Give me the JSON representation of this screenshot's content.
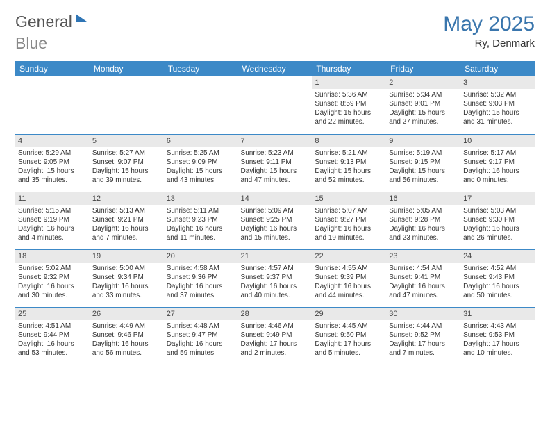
{
  "logo": {
    "part1": "General",
    "part2": "Blue"
  },
  "title": "May 2025",
  "location": "Ry, Denmark",
  "weekdays": [
    "Sunday",
    "Monday",
    "Tuesday",
    "Wednesday",
    "Thursday",
    "Friday",
    "Saturday"
  ],
  "colors": {
    "header_bg": "#3c89c7",
    "header_text": "#ffffff",
    "daynum_bg": "#e9e9e9",
    "title_color": "#3a76ad",
    "rule_color": "#3c89c7"
  },
  "weeks": [
    [
      null,
      null,
      null,
      null,
      {
        "n": "1",
        "sr": "5:36 AM",
        "ss": "8:59 PM",
        "dl": "15 hours and 22 minutes."
      },
      {
        "n": "2",
        "sr": "5:34 AM",
        "ss": "9:01 PM",
        "dl": "15 hours and 27 minutes."
      },
      {
        "n": "3",
        "sr": "5:32 AM",
        "ss": "9:03 PM",
        "dl": "15 hours and 31 minutes."
      }
    ],
    [
      {
        "n": "4",
        "sr": "5:29 AM",
        "ss": "9:05 PM",
        "dl": "15 hours and 35 minutes."
      },
      {
        "n": "5",
        "sr": "5:27 AM",
        "ss": "9:07 PM",
        "dl": "15 hours and 39 minutes."
      },
      {
        "n": "6",
        "sr": "5:25 AM",
        "ss": "9:09 PM",
        "dl": "15 hours and 43 minutes."
      },
      {
        "n": "7",
        "sr": "5:23 AM",
        "ss": "9:11 PM",
        "dl": "15 hours and 47 minutes."
      },
      {
        "n": "8",
        "sr": "5:21 AM",
        "ss": "9:13 PM",
        "dl": "15 hours and 52 minutes."
      },
      {
        "n": "9",
        "sr": "5:19 AM",
        "ss": "9:15 PM",
        "dl": "15 hours and 56 minutes."
      },
      {
        "n": "10",
        "sr": "5:17 AM",
        "ss": "9:17 PM",
        "dl": "16 hours and 0 minutes."
      }
    ],
    [
      {
        "n": "11",
        "sr": "5:15 AM",
        "ss": "9:19 PM",
        "dl": "16 hours and 4 minutes."
      },
      {
        "n": "12",
        "sr": "5:13 AM",
        "ss": "9:21 PM",
        "dl": "16 hours and 7 minutes."
      },
      {
        "n": "13",
        "sr": "5:11 AM",
        "ss": "9:23 PM",
        "dl": "16 hours and 11 minutes."
      },
      {
        "n": "14",
        "sr": "5:09 AM",
        "ss": "9:25 PM",
        "dl": "16 hours and 15 minutes."
      },
      {
        "n": "15",
        "sr": "5:07 AM",
        "ss": "9:27 PM",
        "dl": "16 hours and 19 minutes."
      },
      {
        "n": "16",
        "sr": "5:05 AM",
        "ss": "9:28 PM",
        "dl": "16 hours and 23 minutes."
      },
      {
        "n": "17",
        "sr": "5:03 AM",
        "ss": "9:30 PM",
        "dl": "16 hours and 26 minutes."
      }
    ],
    [
      {
        "n": "18",
        "sr": "5:02 AM",
        "ss": "9:32 PM",
        "dl": "16 hours and 30 minutes."
      },
      {
        "n": "19",
        "sr": "5:00 AM",
        "ss": "9:34 PM",
        "dl": "16 hours and 33 minutes."
      },
      {
        "n": "20",
        "sr": "4:58 AM",
        "ss": "9:36 PM",
        "dl": "16 hours and 37 minutes."
      },
      {
        "n": "21",
        "sr": "4:57 AM",
        "ss": "9:37 PM",
        "dl": "16 hours and 40 minutes."
      },
      {
        "n": "22",
        "sr": "4:55 AM",
        "ss": "9:39 PM",
        "dl": "16 hours and 44 minutes."
      },
      {
        "n": "23",
        "sr": "4:54 AM",
        "ss": "9:41 PM",
        "dl": "16 hours and 47 minutes."
      },
      {
        "n": "24",
        "sr": "4:52 AM",
        "ss": "9:43 PM",
        "dl": "16 hours and 50 minutes."
      }
    ],
    [
      {
        "n": "25",
        "sr": "4:51 AM",
        "ss": "9:44 PM",
        "dl": "16 hours and 53 minutes."
      },
      {
        "n": "26",
        "sr": "4:49 AM",
        "ss": "9:46 PM",
        "dl": "16 hours and 56 minutes."
      },
      {
        "n": "27",
        "sr": "4:48 AM",
        "ss": "9:47 PM",
        "dl": "16 hours and 59 minutes."
      },
      {
        "n": "28",
        "sr": "4:46 AM",
        "ss": "9:49 PM",
        "dl": "17 hours and 2 minutes."
      },
      {
        "n": "29",
        "sr": "4:45 AM",
        "ss": "9:50 PM",
        "dl": "17 hours and 5 minutes."
      },
      {
        "n": "30",
        "sr": "4:44 AM",
        "ss": "9:52 PM",
        "dl": "17 hours and 7 minutes."
      },
      {
        "n": "31",
        "sr": "4:43 AM",
        "ss": "9:53 PM",
        "dl": "17 hours and 10 minutes."
      }
    ]
  ],
  "labels": {
    "sunrise": "Sunrise:",
    "sunset": "Sunset:",
    "daylight": "Daylight:"
  }
}
